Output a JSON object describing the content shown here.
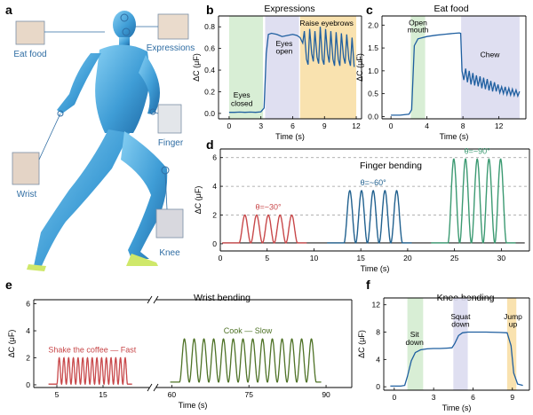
{
  "panel_labels": {
    "a": "a",
    "b": "b",
    "c": "c",
    "d": "d",
    "e": "e",
    "f": "f"
  },
  "figure_a": {
    "callouts": [
      "Eat food",
      "Expressions",
      "Finger",
      "Wrist",
      "Knee"
    ]
  },
  "colors": {
    "axis": "#000000",
    "title": "#2f6da3",
    "dark_curve": "#1f5fa0",
    "green_band": "#d4ecd0",
    "purple_band": "#dcdcf0",
    "orange_band": "#f8dfa6",
    "red": "#c8484a",
    "blue": "#21618f",
    "green": "#3c9a72",
    "olive": "#4e7226",
    "gridline": "#999999"
  },
  "chart_data": [
    {
      "id": "b",
      "type": "line",
      "title": "Expressions",
      "xlabel": "Time (s)",
      "ylabel": "ΔC (μF)",
      "xlim": [
        -1,
        12.5
      ],
      "ylim": [
        -0.05,
        0.9
      ],
      "xticks": [
        0,
        3,
        6,
        9,
        12
      ],
      "yticks": [
        0.0,
        0.2,
        0.4,
        0.6,
        0.8
      ],
      "ytick_labels": [
        "0.0",
        "0.2",
        "0.4",
        "0.6",
        "0.8"
      ],
      "bands": [
        {
          "x0": 0,
          "x1": 3.2,
          "color": "green_band"
        },
        {
          "x0": 3.4,
          "x1": 6.6,
          "color": "purple_band"
        },
        {
          "x0": 6.7,
          "x1": 12.0,
          "color": "orange_band"
        }
      ],
      "annotations": [
        {
          "text": "Eyes",
          "x": 1.2,
          "y": 0.145
        },
        {
          "text": "closed",
          "x": 1.2,
          "y": 0.07
        },
        {
          "text": "Eyes",
          "x": 5.2,
          "y": 0.62
        },
        {
          "text": "open",
          "x": 5.2,
          "y": 0.55
        },
        {
          "text": "Raise eyebrows",
          "x": 9.2,
          "y": 0.81
        }
      ],
      "series": [
        {
          "color": "dark_curve",
          "x": [
            0,
            0.5,
            1.0,
            1.5,
            2.0,
            2.5,
            3.0,
            3.3,
            3.5,
            3.7,
            4.0,
            4.5,
            5.0,
            5.5,
            6.0,
            6.4,
            6.7,
            6.95,
            7.1,
            7.3,
            7.45,
            7.6,
            7.8,
            7.95,
            8.1,
            8.3,
            8.45,
            8.6,
            8.8,
            8.95,
            9.1,
            9.3,
            9.45,
            9.6,
            9.8,
            9.95,
            10.1,
            10.3,
            10.45,
            10.6,
            10.8,
            10.95,
            11.1,
            11.3,
            11.45,
            11.6,
            11.8
          ],
          "y": [
            0.01,
            0.01,
            0.012,
            0.01,
            0.012,
            0.01,
            0.015,
            0.05,
            0.55,
            0.73,
            0.74,
            0.73,
            0.71,
            0.72,
            0.73,
            0.72,
            0.7,
            0.65,
            0.76,
            0.5,
            0.45,
            0.78,
            0.55,
            0.48,
            0.76,
            0.52,
            0.46,
            0.8,
            0.5,
            0.45,
            0.78,
            0.55,
            0.47,
            0.76,
            0.5,
            0.44,
            0.75,
            0.5,
            0.44,
            0.74,
            0.52,
            0.46,
            0.73,
            0.5,
            0.44,
            0.7,
            0.43
          ]
        }
      ]
    },
    {
      "id": "c",
      "type": "line",
      "title": "Eat food",
      "xlabel": "Time (s)",
      "ylabel": "ΔC (μF)",
      "xlim": [
        -1,
        15
      ],
      "ylim": [
        -0.05,
        2.2
      ],
      "xticks": [
        0,
        4,
        8,
        12
      ],
      "yticks": [
        0.0,
        0.5,
        1.0,
        1.5,
        2.0
      ],
      "ytick_labels": [
        "0.0",
        "0.5",
        "1.0",
        "1.5",
        "2.0"
      ],
      "bands": [
        {
          "x0": 2.2,
          "x1": 3.8,
          "color": "green_band"
        },
        {
          "x0": 7.8,
          "x1": 14.3,
          "color": "purple_band"
        }
      ],
      "annotations": [
        {
          "text": "Open",
          "x": 3.0,
          "y": 2.0
        },
        {
          "text": "mouth",
          "x": 3.0,
          "y": 1.84
        },
        {
          "text": "Chew",
          "x": 11.0,
          "y": 1.3
        }
      ],
      "series": [
        {
          "color": "dark_curve",
          "x": [
            0,
            1,
            2,
            2.3,
            2.6,
            3.0,
            4,
            5,
            6,
            7,
            7.6,
            7.75,
            7.9,
            8.1,
            8.3,
            8.5,
            8.7,
            8.9,
            9.1,
            9.3,
            9.5,
            9.7,
            9.9,
            10.1,
            10.3,
            10.5,
            10.7,
            10.9,
            11.1,
            11.3,
            11.5,
            11.7,
            11.9,
            12.1,
            12.3,
            12.5,
            12.7,
            12.9,
            13.1,
            13.3,
            13.5,
            13.7,
            13.9,
            14.1,
            14.3
          ],
          "y": [
            0.03,
            0.03,
            0.05,
            0.15,
            1.55,
            1.7,
            1.75,
            1.78,
            1.8,
            1.82,
            1.83,
            1.82,
            1.0,
            0.8,
            1.05,
            0.75,
            1.0,
            0.7,
            0.95,
            0.68,
            0.9,
            0.66,
            0.88,
            0.62,
            0.85,
            0.6,
            0.82,
            0.57,
            0.78,
            0.55,
            0.75,
            0.55,
            0.7,
            0.52,
            0.65,
            0.5,
            0.65,
            0.48,
            0.62,
            0.47,
            0.6,
            0.46,
            0.58,
            0.45,
            0.55
          ]
        }
      ]
    },
    {
      "id": "d",
      "type": "line",
      "title": "Finger bending",
      "xlabel": "Time (s)",
      "ylabel": "ΔC (μF)",
      "xlim": [
        0,
        33
      ],
      "ylim": [
        -0.5,
        6.6
      ],
      "xticks": [
        0,
        5,
        10,
        15,
        20,
        25,
        30
      ],
      "yticks": [
        0,
        2,
        4,
        6
      ],
      "ytick_labels": [
        "0",
        "2",
        "4",
        "6"
      ],
      "hlines": [
        2,
        4,
        6
      ],
      "groups": [
        {
          "label": "θ=~30°",
          "start": 2.0,
          "period": 1.25,
          "count": 5,
          "peak": 2.0,
          "baseline": 0.06,
          "color": "red"
        },
        {
          "label": "θ=~60°",
          "start": 13.2,
          "period": 1.25,
          "count": 5,
          "peak": 3.7,
          "baseline": 0.06,
          "color": "blue"
        },
        {
          "label": "θ=~90°",
          "start": 24.3,
          "period": 1.25,
          "count": 5,
          "peak": 5.9,
          "baseline": 0.06,
          "color": "green"
        }
      ]
    },
    {
      "id": "e",
      "type": "line",
      "title": "Wrist bending",
      "xlabel": "Time (s)",
      "ylabel": "ΔC (μF)",
      "ylim": [
        -0.2,
        6.3
      ],
      "yticks": [
        0,
        2,
        4,
        6
      ],
      "ytick_labels": [
        "0",
        "2",
        "4",
        "6"
      ],
      "segments": [
        {
          "xlim": [
            0,
            25
          ],
          "xticks": [
            5,
            15
          ],
          "label": "Shake the coffee — Fast",
          "color": "red",
          "start": 5.0,
          "period": 1.02,
          "count": 15,
          "peak": 2.0,
          "baseline": 0.05
        },
        {
          "xlim": [
            57,
            95
          ],
          "xticks": [
            60,
            75,
            90
          ],
          "label": "Cook — Slow",
          "color": "olive",
          "start": 61.5,
          "period": 1.9,
          "count": 14,
          "peak": 3.4,
          "baseline": 0.2
        }
      ]
    },
    {
      "id": "f",
      "type": "line",
      "title": "Knee bending",
      "xlabel": "Time (s)",
      "ylabel": "ΔC (μF)",
      "xlim": [
        -0.8,
        10.3
      ],
      "ylim": [
        -0.5,
        13
      ],
      "xticks": [
        0,
        3,
        6,
        9
      ],
      "yticks": [
        0,
        4,
        8,
        12
      ],
      "ytick_labels": [
        "0",
        "4",
        "8",
        "12"
      ],
      "bands": [
        {
          "x0": 1.0,
          "x1": 2.2,
          "color": "green_band"
        },
        {
          "x0": 4.5,
          "x1": 5.6,
          "color": "purple_band"
        },
        {
          "x0": 8.6,
          "x1": 9.3,
          "color": "orange_band"
        }
      ],
      "annotations": [
        {
          "text": "Sit",
          "x": 1.55,
          "y": 7.3
        },
        {
          "text": "down",
          "x": 1.55,
          "y": 6.1
        },
        {
          "text": "Squat",
          "x": 5.05,
          "y": 9.9
        },
        {
          "text": "down",
          "x": 5.05,
          "y": 8.8
        },
        {
          "text": "Jump",
          "x": 9.05,
          "y": 9.9
        },
        {
          "text": "up",
          "x": 9.05,
          "y": 8.8
        }
      ],
      "series": [
        {
          "color": "dark_curve",
          "x": [
            -0.3,
            0.5,
            0.8,
            1.0,
            1.3,
            1.6,
            2.0,
            2.5,
            3.0,
            3.5,
            4.0,
            4.4,
            4.6,
            4.9,
            5.2,
            5.6,
            6.0,
            7.0,
            8.0,
            8.6,
            8.9,
            9.1,
            9.4,
            9.8
          ],
          "y": [
            0.1,
            0.1,
            0.2,
            1.5,
            3.8,
            5.0,
            5.4,
            5.55,
            5.6,
            5.6,
            5.65,
            5.7,
            6.3,
            7.5,
            7.9,
            8.0,
            8.0,
            8.0,
            7.95,
            7.9,
            6.0,
            2.0,
            0.4,
            0.2
          ]
        }
      ]
    }
  ]
}
